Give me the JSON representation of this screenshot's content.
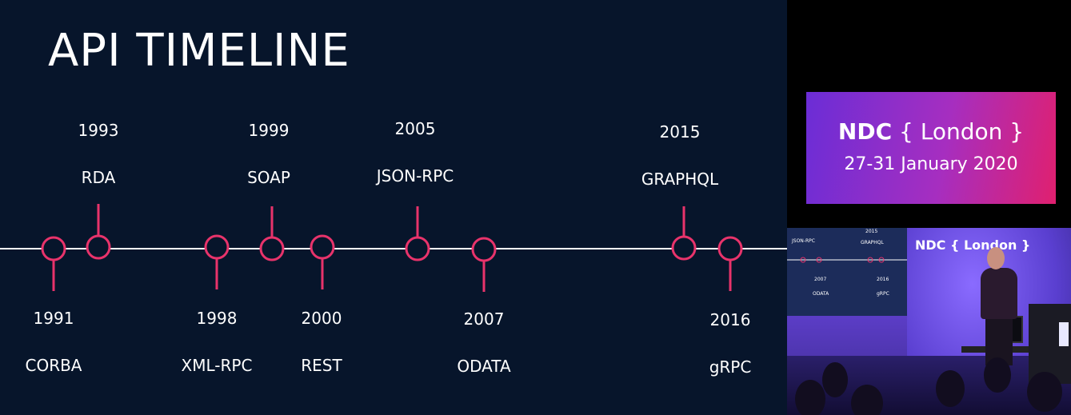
{
  "slide": {
    "title": "API TIMELINE",
    "colors": {
      "background": "#07152b",
      "line": "#ffffff",
      "marker": "#e8336b",
      "text": "#ffffff"
    },
    "events_above": [
      {
        "year": "1993",
        "name": "RDA"
      },
      {
        "year": "1999",
        "name": "SOAP"
      },
      {
        "year": "2005",
        "name": "JSON-RPC"
      },
      {
        "year": "2015",
        "name": "GRAPHQL"
      }
    ],
    "events_below": [
      {
        "year": "1991",
        "name": "CORBA"
      },
      {
        "year": "1998",
        "name": "XML-RPC"
      },
      {
        "year": "2000",
        "name": "REST"
      },
      {
        "year": "2007",
        "name": "ODATA"
      },
      {
        "year": "2016",
        "name": "gRPC"
      }
    ]
  },
  "conference": {
    "name": "NDC",
    "location_braced": "{ London }",
    "dates": "27-31 January 2020",
    "gradient": [
      "#6b2dd6",
      "#a62ec0",
      "#e0206f"
    ]
  },
  "camera": {
    "sign_text": "NDC { London }",
    "mini_slide_labels": [
      "JSON-RPC",
      "2015",
      "GRAPHQL",
      "2007",
      "2016",
      "ODATA",
      "gRPC"
    ]
  }
}
